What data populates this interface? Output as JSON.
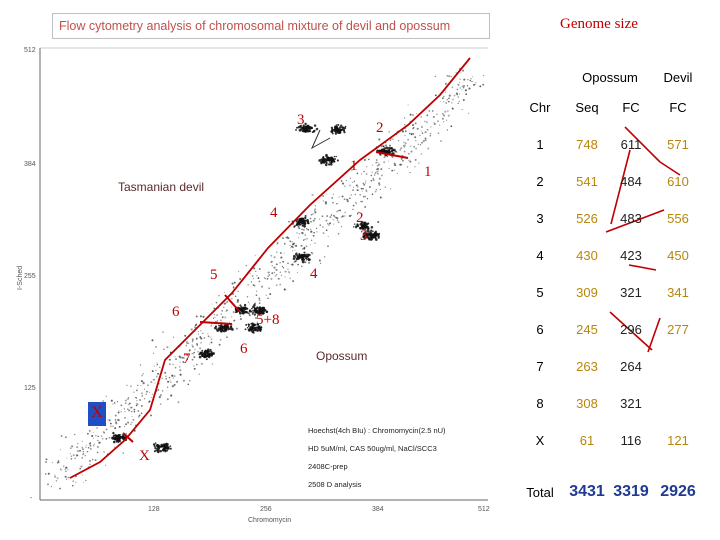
{
  "header": {
    "title": "Flow cytometry analysis of chromosomal mixture of devil and opossum",
    "genome_title": "Genome size"
  },
  "plot": {
    "y_ticks": [
      "512",
      "384",
      "255",
      "125",
      "-"
    ],
    "x_ticks": [
      "128",
      "256",
      "384",
      "512"
    ],
    "y_axis_label": "I-Sched",
    "x_axis_label": "Chromomycin",
    "species_labels": {
      "devil": "Tasmanian devil",
      "opossum": "Opossum"
    },
    "devil_chromosomes": [
      "1",
      "2",
      "3",
      "4",
      "5",
      "6",
      "7",
      "X"
    ],
    "opossum_chromosomes": [
      "1",
      "2",
      "3",
      "4",
      "5+8",
      "6",
      "7",
      "8",
      "X"
    ],
    "notes": [
      "Hoechst(4ch BIu) : Chromomycin(2.5 nU)",
      "HD 5uM/ml, CAS 50ug/ml, NaCl/SCC3",
      "2408C-prep",
      "2508 D analysis"
    ],
    "colors": {
      "annotation": "#c00000",
      "dots": "#222222",
      "x_box": "#1f4fc4"
    }
  },
  "table": {
    "group_headers": {
      "opossum": "Opossum",
      "devil": "Devil"
    },
    "col_headers": [
      "Chr",
      "Seq",
      "FC",
      "FC"
    ],
    "rows": [
      {
        "chr": "1",
        "seq": "748",
        "ofc": "611",
        "dfc": "571"
      },
      {
        "chr": "2",
        "seq": "541",
        "ofc": "484",
        "dfc": "610"
      },
      {
        "chr": "3",
        "seq": "526",
        "ofc": "483",
        "dfc": "556"
      },
      {
        "chr": "4",
        "seq": "430",
        "ofc": "423",
        "dfc": "450"
      },
      {
        "chr": "5",
        "seq": "309",
        "ofc": "321",
        "dfc": "341"
      },
      {
        "chr": "6",
        "seq": "245",
        "ofc": "296",
        "dfc": "277"
      },
      {
        "chr": "7",
        "seq": "263",
        "ofc": "264",
        "dfc": ""
      },
      {
        "chr": "8",
        "seq": "308",
        "ofc": "321",
        "dfc": ""
      },
      {
        "chr": "X",
        "seq": "61",
        "ofc": "116",
        "dfc": "121"
      }
    ],
    "total": {
      "label": "Total",
      "seq": "3431",
      "ofc": "3319",
      "dfc": "2926"
    }
  },
  "chart_data": {
    "type": "scatter",
    "title": "Flow cytometry analysis of chromosomal mixture of devil and opossum",
    "xlabel": "Chromomycin",
    "ylabel": "I-Sched",
    "xlim": [
      0,
      512
    ],
    "ylim": [
      0,
      512
    ],
    "x_ticks": [
      128,
      256,
      384,
      512
    ],
    "y_ticks": [
      125,
      255,
      384,
      512
    ],
    "series": [
      {
        "name": "Tasmanian devil",
        "points": [
          {
            "label": "1",
            "x": 395,
            "y": 395
          },
          {
            "label": "2",
            "x": 370,
            "y": 310
          },
          {
            "label": "3",
            "x": 380,
            "y": 300
          },
          {
            "label": "4",
            "x": 300,
            "y": 275
          },
          {
            "label": "5",
            "x": 250,
            "y": 215
          },
          {
            "label": "6",
            "x": 245,
            "y": 195
          },
          {
            "label": "X",
            "x": 140,
            "y": 60
          }
        ]
      },
      {
        "name": "Opossum",
        "points": [
          {
            "label": "1",
            "x": 330,
            "y": 385
          },
          {
            "label": "2",
            "x": 340,
            "y": 420
          },
          {
            "label": "3",
            "x": 305,
            "y": 420
          },
          {
            "label": "4",
            "x": 300,
            "y": 315
          },
          {
            "label": "5+8",
            "x": 230,
            "y": 215
          },
          {
            "label": "6",
            "x": 210,
            "y": 195
          },
          {
            "label": "7",
            "x": 190,
            "y": 165
          },
          {
            "label": "X",
            "x": 90,
            "y": 70
          }
        ]
      }
    ],
    "table": {
      "columns": [
        "Chr",
        "Opossum Seq",
        "Opossum FC",
        "Devil FC"
      ],
      "rows": [
        [
          "1",
          748,
          611,
          571
        ],
        [
          "2",
          541,
          484,
          610
        ],
        [
          "3",
          526,
          483,
          556
        ],
        [
          "4",
          430,
          423,
          450
        ],
        [
          "5",
          309,
          321,
          341
        ],
        [
          "6",
          245,
          296,
          277
        ],
        [
          "7",
          263,
          264,
          null
        ],
        [
          "8",
          308,
          321,
          null
        ],
        [
          "X",
          61,
          116,
          121
        ],
        [
          "Total",
          3431,
          3319,
          2926
        ]
      ]
    }
  }
}
